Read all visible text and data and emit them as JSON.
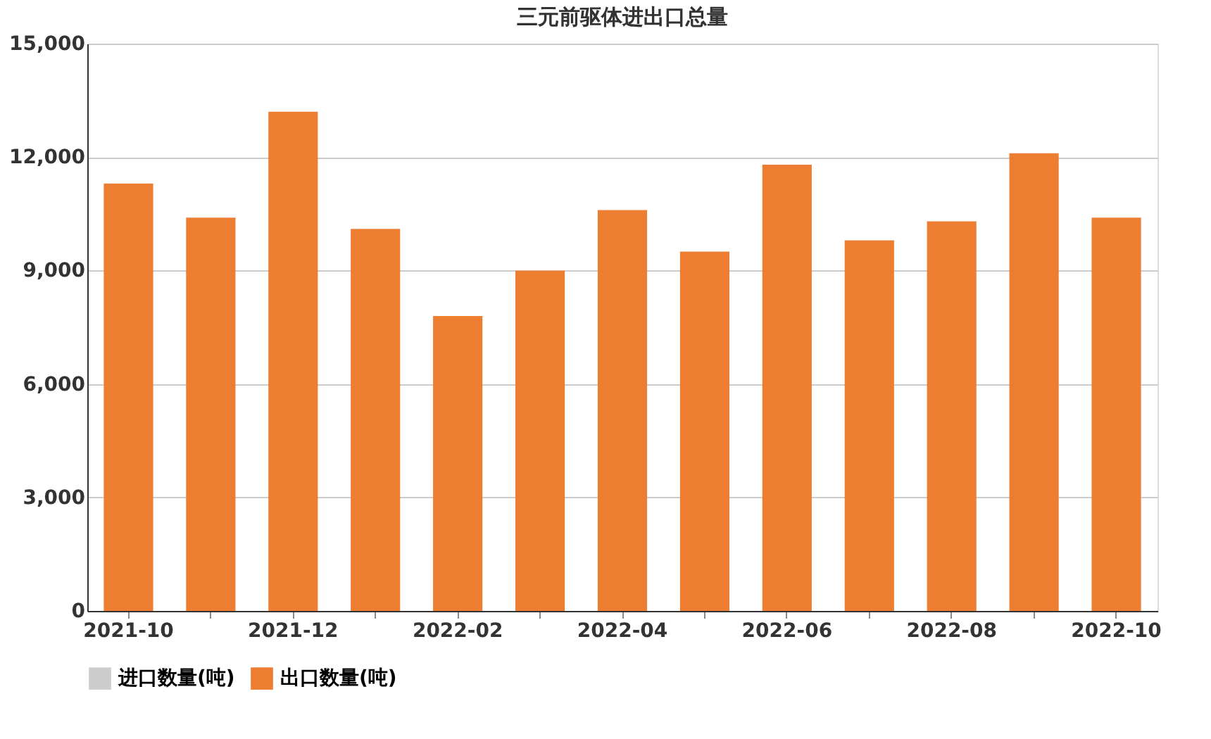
{
  "chart_data": {
    "type": "bar",
    "title": "三元前驱体进出口总量",
    "categories": [
      "2021-10",
      null,
      "2021-12",
      null,
      "2022-02",
      null,
      "2022-04",
      null,
      "2022-06",
      null,
      "2022-08",
      null,
      "2022-10"
    ],
    "series": [
      {
        "name": "进口数量(吨)",
        "color": "#cccccc",
        "values": [
          null,
          null,
          null,
          null,
          null,
          null,
          null,
          null,
          null,
          null,
          null,
          null,
          null
        ]
      },
      {
        "name": "出口数量(吨)",
        "color": "#ed7d31",
        "values": [
          11300,
          10400,
          13200,
          10100,
          7800,
          9000,
          10600,
          9500,
          11800,
          9800,
          10300,
          12100,
          10400
        ]
      }
    ],
    "ylim": [
      0,
      15000
    ],
    "yticks": [
      {
        "value": 0,
        "label": "0"
      },
      {
        "value": 3000,
        "label": "3,000"
      },
      {
        "value": 6000,
        "label": "6,000"
      },
      {
        "value": 9000,
        "label": "9,000"
      },
      {
        "value": 12000,
        "label": "12,000"
      },
      {
        "value": 15000,
        "label": "15,000"
      }
    ],
    "grid": "y",
    "legend": "bottom"
  }
}
